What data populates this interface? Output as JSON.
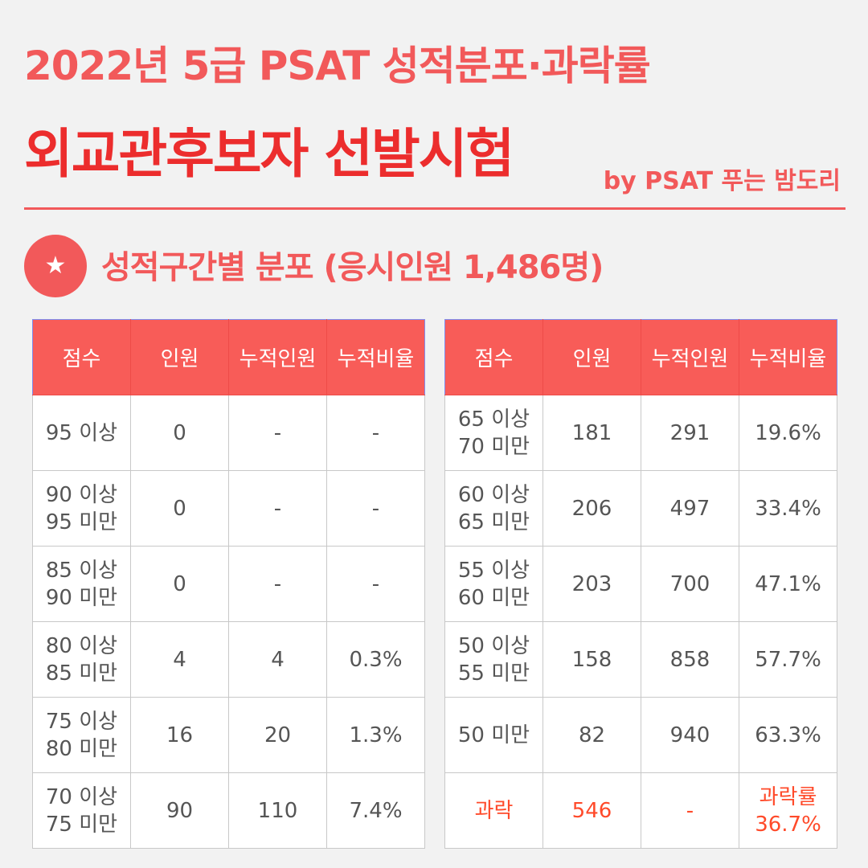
{
  "header": {
    "title_line1": "2022년 5급 PSAT 성적분포·과락률",
    "title_line2": "외교관후보자 선발시험",
    "byline": "by PSAT 푸는 밤도리"
  },
  "section": {
    "icon": "star-icon",
    "title": "성적구간별 분포 (응시인원 1,486명)"
  },
  "colors": {
    "accent": "#f2595a",
    "title_red": "#ec2d2d",
    "fail_red": "#ff4a2a"
  },
  "columns": [
    "점수",
    "인원",
    "누적인원",
    "누적비율"
  ],
  "left_table": [
    {
      "score": [
        "95 이상"
      ],
      "count": "0",
      "cum": "-",
      "ratio": [
        "-"
      ]
    },
    {
      "score": [
        "90 이상",
        "95 미만"
      ],
      "count": "0",
      "cum": "-",
      "ratio": [
        "-"
      ]
    },
    {
      "score": [
        "85 이상",
        "90 미만"
      ],
      "count": "0",
      "cum": "-",
      "ratio": [
        "-"
      ]
    },
    {
      "score": [
        "80 이상",
        "85 미만"
      ],
      "count": "4",
      "cum": "4",
      "ratio": [
        "0.3%"
      ]
    },
    {
      "score": [
        "75 이상",
        "80 미만"
      ],
      "count": "16",
      "cum": "20",
      "ratio": [
        "1.3%"
      ]
    },
    {
      "score": [
        "70 이상",
        "75 미만"
      ],
      "count": "90",
      "cum": "110",
      "ratio": [
        "7.4%"
      ]
    }
  ],
  "right_table": [
    {
      "score": [
        "65 이상",
        "70 미만"
      ],
      "count": "181",
      "cum": "291",
      "ratio": [
        "19.6%"
      ]
    },
    {
      "score": [
        "60 이상",
        "65 미만"
      ],
      "count": "206",
      "cum": "497",
      "ratio": [
        "33.4%"
      ]
    },
    {
      "score": [
        "55 이상",
        "60 미만"
      ],
      "count": "203",
      "cum": "700",
      "ratio": [
        "47.1%"
      ]
    },
    {
      "score": [
        "50 이상",
        "55 미만"
      ],
      "count": "158",
      "cum": "858",
      "ratio": [
        "57.7%"
      ]
    },
    {
      "score": [
        "50 미만"
      ],
      "count": "82",
      "cum": "940",
      "ratio": [
        "63.3%"
      ]
    },
    {
      "score": [
        "과락"
      ],
      "count": "546",
      "cum": "-",
      "ratio": [
        "과락률",
        "36.7%"
      ],
      "highlight": true
    }
  ]
}
